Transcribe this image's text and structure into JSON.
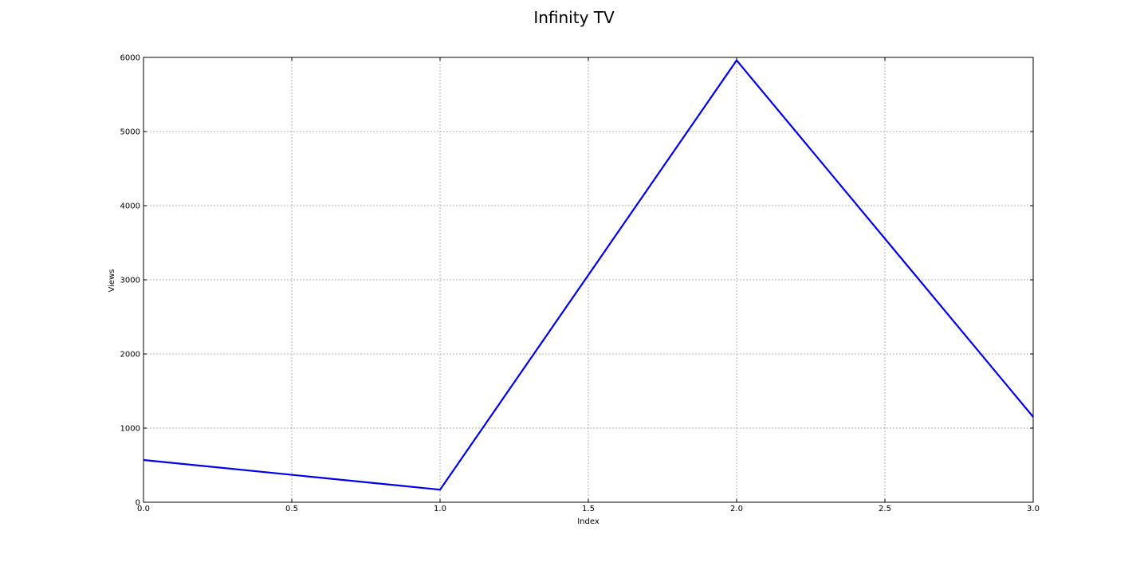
{
  "chart_data": {
    "type": "line",
    "title": "Infinity TV",
    "xlabel": "Index",
    "ylabel": "Views",
    "xlim": [
      0,
      3
    ],
    "ylim": [
      0,
      6000
    ],
    "xticks": [
      0.0,
      0.5,
      1.0,
      1.5,
      2.0,
      2.5,
      3.0
    ],
    "xtick_labels": [
      "0.0",
      "0.5",
      "1.0",
      "1.5",
      "2.0",
      "2.5",
      "3.0"
    ],
    "yticks": [
      0,
      1000,
      2000,
      3000,
      4000,
      5000,
      6000
    ],
    "ytick_labels": [
      "0",
      "1000",
      "2000",
      "3000",
      "4000",
      "5000",
      "6000"
    ],
    "grid": true,
    "legend": "none",
    "series": [
      {
        "x": [
          0,
          1,
          2,
          3
        ],
        "values": [
          570,
          170,
          5960,
          1150
        ],
        "color": "#0000ee"
      }
    ]
  }
}
